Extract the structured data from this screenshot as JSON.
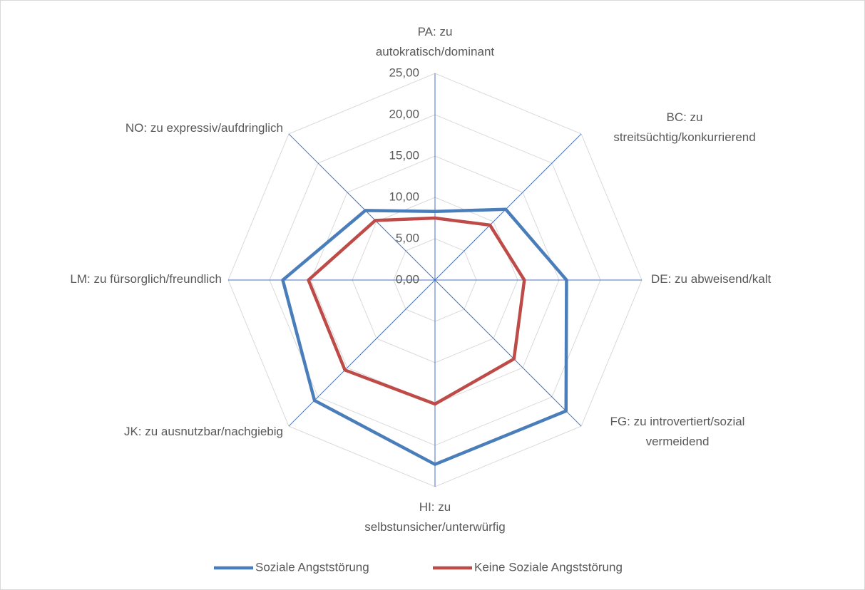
{
  "chart_data": {
    "type": "radar",
    "categories": [
      "PA: zu autokratisch/dominant",
      "BC: zu streitsüchtig/konkurrierend",
      "DE: zu abweisend/kalt",
      "FG: zu introvertiert/sozial vermeidend",
      "HI: zu selbstunsicher/unterwürfig",
      "JK: zu ausnutzbar/nachgiebig",
      "LM: zu fürsorglich/freundlich",
      "NO: zu expressiv/aufdringlich"
    ],
    "series": [
      {
        "name": "Soziale Angststörung",
        "color": "#4a7ebb",
        "values": [
          8.3,
          12.1,
          15.9,
          22.4,
          22.3,
          20.6,
          18.4,
          11.9
        ]
      },
      {
        "name": "Keine Soziale Angststörung",
        "color": "#be4b48",
        "values": [
          7.5,
          9.4,
          10.8,
          13.5,
          15.0,
          15.4,
          15.3,
          10.2
        ]
      }
    ],
    "ylim": [
      0,
      25
    ],
    "yticks": [
      {
        "value": 0,
        "label": "0,00"
      },
      {
        "value": 5,
        "label": "5,00"
      },
      {
        "value": 10,
        "label": "10,00"
      },
      {
        "value": 15,
        "label": "15,00"
      },
      {
        "value": 20,
        "label": "20,00"
      },
      {
        "value": 25,
        "label": "25,00"
      }
    ],
    "grid": true,
    "legend": "bottom"
  }
}
